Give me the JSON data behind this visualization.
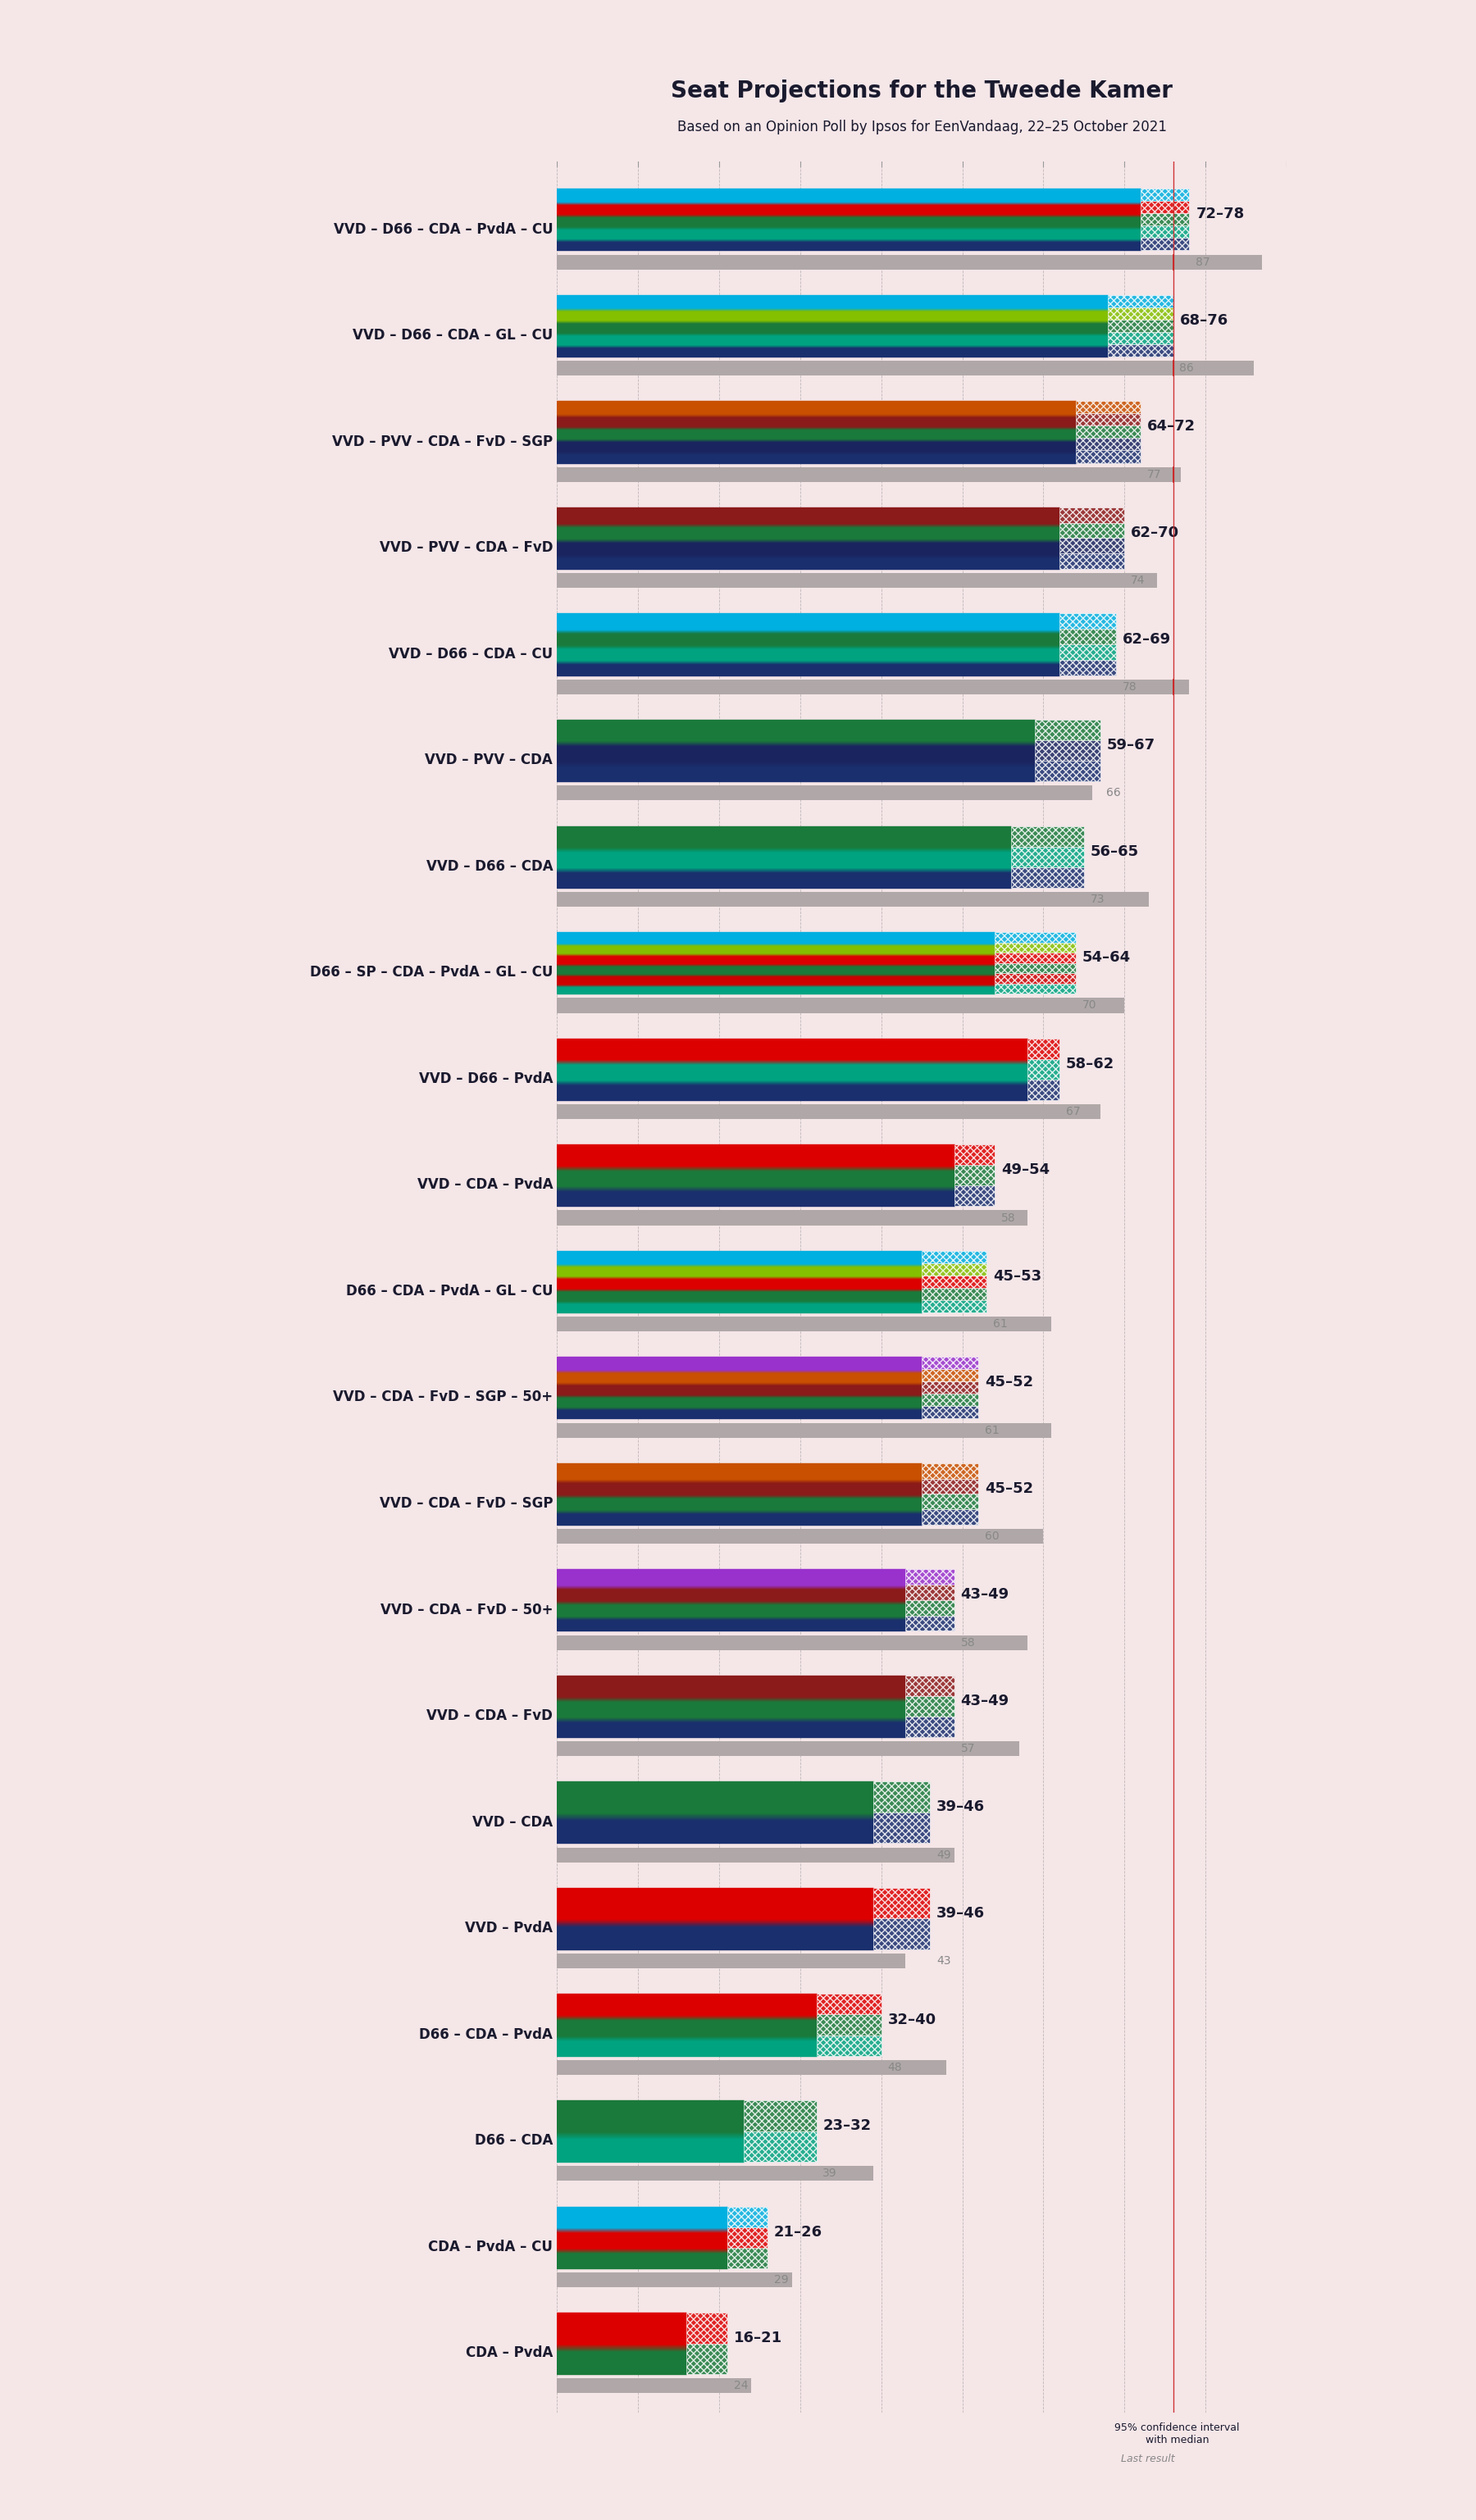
{
  "title": "Seat Projections for the Tweede Kamer",
  "subtitle": "Based on an Opinion Poll by Ipsos for EenVandaag, 22–25 October 2021",
  "background_color": "#f5e6e8",
  "coalitions": [
    {
      "name": "VVD – D66 – CDA – PvdA – CU",
      "low": 72,
      "high": 78,
      "last": 87,
      "parties": [
        "VVD",
        "D66",
        "CDA",
        "PvdA",
        "CU"
      ]
    },
    {
      "name": "VVD – D66 – CDA – GL – CU",
      "low": 68,
      "high": 76,
      "last": 86,
      "parties": [
        "VVD",
        "D66",
        "CDA",
        "GL",
        "CU"
      ]
    },
    {
      "name": "VVD – PVV – CDA – FvD – SGP",
      "low": 64,
      "high": 72,
      "last": 77,
      "parties": [
        "VVD",
        "PVV",
        "CDA",
        "FvD",
        "SGP"
      ]
    },
    {
      "name": "VVD – PVV – CDA – FvD",
      "low": 62,
      "high": 70,
      "last": 74,
      "parties": [
        "VVD",
        "PVV",
        "CDA",
        "FvD"
      ]
    },
    {
      "name": "VVD – D66 – CDA – CU",
      "low": 62,
      "high": 69,
      "last": 78,
      "parties": [
        "VVD",
        "D66",
        "CDA",
        "CU"
      ]
    },
    {
      "name": "VVD – PVV – CDA",
      "low": 59,
      "high": 67,
      "last": 66,
      "parties": [
        "VVD",
        "PVV",
        "CDA"
      ]
    },
    {
      "name": "VVD – D66 – CDA",
      "low": 56,
      "high": 65,
      "last": 73,
      "parties": [
        "VVD",
        "D66",
        "CDA"
      ]
    },
    {
      "name": "D66 – SP – CDA – PvdA – GL – CU",
      "low": 54,
      "high": 64,
      "last": 70,
      "parties": [
        "D66",
        "SP",
        "CDA",
        "PvdA",
        "GL",
        "CU"
      ]
    },
    {
      "name": "VVD – D66 – PvdA",
      "low": 58,
      "high": 62,
      "last": 67,
      "parties": [
        "VVD",
        "D66",
        "PvdA"
      ]
    },
    {
      "name": "VVD – CDA – PvdA",
      "low": 49,
      "high": 54,
      "last": 58,
      "parties": [
        "VVD",
        "CDA",
        "PvdA"
      ]
    },
    {
      "name": "D66 – CDA – PvdA – GL – CU",
      "low": 45,
      "high": 53,
      "last": 61,
      "parties": [
        "D66",
        "CDA",
        "PvdA",
        "GL",
        "CU"
      ]
    },
    {
      "name": "VVD – CDA – FvD – SGP – 50+",
      "low": 45,
      "high": 52,
      "last": 61,
      "parties": [
        "VVD",
        "CDA",
        "FvD",
        "SGP",
        "50+"
      ]
    },
    {
      "name": "VVD – CDA – FvD – SGP",
      "low": 45,
      "high": 52,
      "last": 60,
      "parties": [
        "VVD",
        "CDA",
        "FvD",
        "SGP"
      ]
    },
    {
      "name": "VVD – CDA – FvD – 50+",
      "low": 43,
      "high": 49,
      "last": 58,
      "parties": [
        "VVD",
        "CDA",
        "FvD",
        "50+"
      ]
    },
    {
      "name": "VVD – CDA – FvD",
      "low": 43,
      "high": 49,
      "last": 57,
      "parties": [
        "VVD",
        "CDA",
        "FvD"
      ]
    },
    {
      "name": "VVD – CDA",
      "low": 39,
      "high": 46,
      "last": 49,
      "parties": [
        "VVD",
        "CDA"
      ]
    },
    {
      "name": "VVD – PvdA",
      "low": 39,
      "high": 46,
      "last": 43,
      "parties": [
        "VVD",
        "PvdA"
      ]
    },
    {
      "name": "D66 – CDA – PvdA",
      "low": 32,
      "high": 40,
      "last": 48,
      "parties": [
        "D66",
        "CDA",
        "PvdA"
      ]
    },
    {
      "name": "D66 – CDA",
      "low": 23,
      "high": 32,
      "last": 39,
      "parties": [
        "D66",
        "CDA"
      ]
    },
    {
      "name": "CDA – PvdA – CU",
      "low": 21,
      "high": 26,
      "last": 29,
      "parties": [
        "CDA",
        "PvdA",
        "CU"
      ]
    },
    {
      "name": "CDA – PvdA",
      "low": 16,
      "high": 21,
      "last": 24,
      "parties": [
        "CDA",
        "PvdA"
      ]
    }
  ],
  "party_colors": {
    "VVD": "#1a2f6e",
    "D66": "#00a380",
    "CDA": "#1a7a3b",
    "PvdA": "#dd0000",
    "CU": "#00b0e0",
    "GL": "#84c000",
    "PVV": "#1a2560",
    "FvD": "#8b1a1a",
    "SGP": "#c85000",
    "SP": "#cc0000",
    "50+": "#9932cc"
  },
  "majority_line": 76,
  "xmax": 90,
  "xlabel_step": 10
}
